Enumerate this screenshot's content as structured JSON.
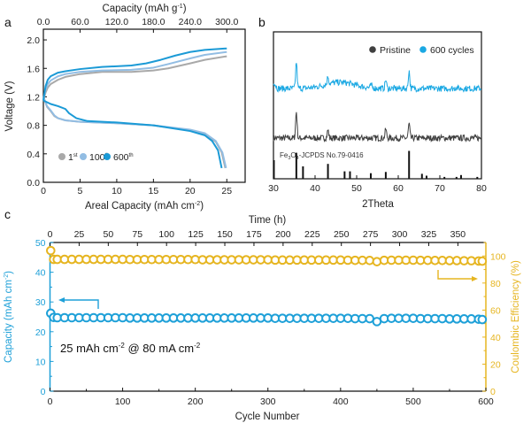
{
  "chart_data": [
    {
      "panel": "a",
      "type": "line",
      "top_title": [
        "Capacity (mAh g",
        "-1",
        ")"
      ],
      "top_ticks": [
        "0.0",
        "60.0",
        "120.0",
        "180.0",
        "240.0",
        "300.0"
      ],
      "top_tick_values": [
        0,
        60,
        120,
        180,
        240,
        300
      ],
      "xlabel": [
        "Areal Capacity (mAh cm",
        "-2",
        ")"
      ],
      "ylabel": "Voltage (V)",
      "x_ticks": [
        "0",
        "5",
        "10",
        "15",
        "20",
        "25"
      ],
      "x_tick_values": [
        0,
        5,
        10,
        15,
        20,
        25
      ],
      "y_ticks": [
        "0.0",
        "0.4",
        "0.8",
        "1.2",
        "1.6",
        "2.0"
      ],
      "y_tick_values": [
        0,
        0.4,
        0.8,
        1.2,
        1.6,
        2.0
      ],
      "xlim": [
        0,
        27.5
      ],
      "ylim": [
        0,
        2.15
      ],
      "legend_position": "bottom-left",
      "series": [
        {
          "name": "1",
          "sup": "st",
          "color": "#a9a9a9",
          "charge": [
            [
              0,
              1.15
            ],
            [
              0.3,
              1.26
            ],
            [
              0.6,
              1.33
            ],
            [
              1,
              1.38
            ],
            [
              2,
              1.44
            ],
            [
              3,
              1.48
            ],
            [
              5,
              1.52
            ],
            [
              8,
              1.55
            ],
            [
              12,
              1.55
            ],
            [
              15,
              1.57
            ],
            [
              17,
              1.6
            ],
            [
              20,
              1.67
            ],
            [
              22,
              1.72
            ],
            [
              25,
              1.77
            ]
          ],
          "discharge": [
            [
              0,
              1.2
            ],
            [
              0.5,
              1.06
            ],
            [
              1,
              1.0
            ],
            [
              1.5,
              0.93
            ],
            [
              2,
              0.9
            ],
            [
              3,
              0.87
            ],
            [
              5,
              0.85
            ],
            [
              10,
              0.83
            ],
            [
              15,
              0.8
            ],
            [
              20,
              0.73
            ],
            [
              22,
              0.68
            ],
            [
              23.5,
              0.57
            ],
            [
              24.3,
              0.42
            ],
            [
              24.8,
              0.2
            ]
          ]
        },
        {
          "name": "100",
          "sup": "th",
          "color": "#92bde3",
          "charge": [
            [
              0,
              1.15
            ],
            [
              0.3,
              1.3
            ],
            [
              0.6,
              1.38
            ],
            [
              1,
              1.43
            ],
            [
              2,
              1.49
            ],
            [
              3,
              1.52
            ],
            [
              5,
              1.55
            ],
            [
              8,
              1.57
            ],
            [
              12,
              1.58
            ],
            [
              15,
              1.61
            ],
            [
              17,
              1.66
            ],
            [
              20,
              1.74
            ],
            [
              22,
              1.79
            ],
            [
              25,
              1.83
            ]
          ],
          "discharge": [
            [
              0,
              1.2
            ],
            [
              0.5,
              1.07
            ],
            [
              1,
              1.01
            ],
            [
              1.5,
              0.94
            ],
            [
              2,
              0.9
            ],
            [
              3,
              0.87
            ],
            [
              5,
              0.85
            ],
            [
              10,
              0.83
            ],
            [
              15,
              0.8
            ],
            [
              20,
              0.74
            ],
            [
              22,
              0.69
            ],
            [
              23.5,
              0.58
            ],
            [
              24.4,
              0.42
            ],
            [
              24.9,
              0.2
            ]
          ]
        },
        {
          "name": "600",
          "sup": "th",
          "color": "#1b9ad6",
          "charge": [
            [
              0,
              1.15
            ],
            [
              0.3,
              1.35
            ],
            [
              0.6,
              1.44
            ],
            [
              1,
              1.49
            ],
            [
              2,
              1.54
            ],
            [
              3,
              1.56
            ],
            [
              5,
              1.59
            ],
            [
              8,
              1.62
            ],
            [
              12,
              1.64
            ],
            [
              14,
              1.67
            ],
            [
              16,
              1.72
            ],
            [
              18,
              1.78
            ],
            [
              20,
              1.83
            ],
            [
              22,
              1.86
            ],
            [
              25,
              1.88
            ]
          ],
          "discharge": [
            [
              0,
              1.15
            ],
            [
              1,
              1.1
            ],
            [
              2,
              1.07
            ],
            [
              3,
              1.03
            ],
            [
              3.5,
              0.97
            ],
            [
              4.5,
              0.9
            ],
            [
              6,
              0.86
            ],
            [
              10,
              0.84
            ],
            [
              15,
              0.8
            ],
            [
              20,
              0.72
            ],
            [
              22,
              0.66
            ],
            [
              23,
              0.58
            ],
            [
              23.8,
              0.45
            ],
            [
              24.3,
              0.2
            ]
          ]
        }
      ]
    },
    {
      "panel": "b",
      "type": "line",
      "xlabel": "2Theta",
      "x_ticks": [
        "30",
        "40",
        "50",
        "60",
        "70",
        "80"
      ],
      "x_tick_values": [
        30,
        40,
        50,
        60,
        70,
        80
      ],
      "xlim": [
        30,
        80
      ],
      "legend_position": "top-right",
      "series": [
        {
          "name": "Pristine",
          "color": "#3f3f3f",
          "offset": 0.55,
          "noise": 0.035,
          "peaks": [
            [
              35.5,
              0.3
            ],
            [
              43.1,
              0.09
            ],
            [
              57.0,
              0.1
            ],
            [
              62.6,
              0.16
            ]
          ],
          "hump": 0
        },
        {
          "name": "600 cycles",
          "color": "#1aa8e3",
          "offset": 1.0,
          "noise": 0.035,
          "peaks": [
            [
              35.5,
              0.3
            ],
            [
              43.1,
              0.09
            ],
            [
              53.5,
              0.03
            ],
            [
              57.0,
              0.1
            ],
            [
              62.6,
              0.2
            ],
            [
              74,
              0.02
            ]
          ],
          "hump": 0.07
        }
      ],
      "reference": {
        "label": [
          "Fe",
          "3",
          "O",
          "4",
          "-JCPDS No.79-0416"
        ],
        "sticks": [
          [
            30.1,
            0.3
          ],
          [
            35.5,
            0.42
          ],
          [
            37.1,
            0.2
          ],
          [
            43.1,
            0.24
          ],
          [
            47.1,
            0.12
          ],
          [
            48.4,
            0.12
          ],
          [
            53.4,
            0.09
          ],
          [
            57.0,
            0.11
          ],
          [
            62.6,
            0.45
          ],
          [
            65.7,
            0.08
          ],
          [
            66.8,
            0.05
          ],
          [
            71.1,
            0.03
          ],
          [
            74.0,
            0.03
          ],
          [
            75.1,
            0.06
          ],
          [
            79.0,
            0.03
          ]
        ]
      }
    },
    {
      "panel": "c",
      "type": "scatter",
      "top_title": "Time (h)",
      "top_ticks": [
        "0",
        "25",
        "50",
        "75",
        "100",
        "125",
        "150",
        "175",
        "200",
        "225",
        "250",
        "275",
        "300",
        "325",
        "350"
      ],
      "top_tick_values": [
        0,
        25,
        50,
        75,
        100,
        125,
        150,
        175,
        200,
        225,
        250,
        275,
        300,
        325,
        350
      ],
      "time_range": [
        0,
        374
      ],
      "xlabel": "Cycle Number",
      "x_ticks": [
        "0",
        "100",
        "200",
        "300",
        "400",
        "500",
        "600"
      ],
      "x_tick_values": [
        0,
        100,
        200,
        300,
        400,
        500,
        600
      ],
      "xlim": [
        0,
        600
      ],
      "ylabel_left": [
        "Capacity (mAh cm",
        "-2",
        ")"
      ],
      "y_left_ticks": [
        "0",
        "10",
        "20",
        "30",
        "40",
        "50"
      ],
      "y_left_tick_values": [
        0,
        10,
        20,
        30,
        40,
        50
      ],
      "ylim_left": [
        0,
        50
      ],
      "ylabel_right": "Coulombic Efficiency (%)",
      "y_right_ticks": [
        "0",
        "20",
        "40",
        "60",
        "80",
        "100"
      ],
      "y_right_tick_values": [
        0,
        20,
        40,
        60,
        80,
        100
      ],
      "ylim_right": [
        0,
        110
      ],
      "annotation": [
        "25 mAh cm",
        "-2",
        " @ 80 mA cm",
        "-2"
      ],
      "cycles": [
        1,
        5,
        10,
        20,
        30,
        40,
        50,
        60,
        70,
        80,
        90,
        100,
        110,
        120,
        130,
        140,
        150,
        160,
        170,
        180,
        190,
        200,
        210,
        220,
        230,
        240,
        250,
        260,
        270,
        280,
        290,
        300,
        310,
        320,
        330,
        340,
        350,
        360,
        370,
        380,
        390,
        400,
        410,
        420,
        430,
        440,
        450,
        460,
        470,
        480,
        490,
        500,
        510,
        520,
        530,
        540,
        550,
        560,
        570,
        580,
        590,
        595
      ],
      "series": [
        {
          "name": "Capacity",
          "axis": "left",
          "color": "#1ea0d8",
          "values": [
            26.2,
            24.8,
            24.7,
            24.7,
            24.7,
            24.7,
            24.7,
            24.7,
            24.7,
            24.7,
            24.7,
            24.7,
            24.6,
            24.6,
            24.6,
            24.6,
            24.6,
            24.6,
            24.6,
            24.6,
            24.6,
            24.6,
            24.6,
            24.6,
            24.6,
            24.6,
            24.6,
            24.6,
            24.6,
            24.6,
            24.6,
            24.6,
            24.5,
            24.5,
            24.5,
            24.5,
            24.5,
            24.5,
            24.5,
            24.5,
            24.5,
            24.5,
            24.5,
            24.4,
            24.4,
            24.4,
            23.4,
            24.4,
            24.5,
            24.5,
            24.5,
            24.5,
            24.4,
            24.4,
            24.4,
            24.4,
            24.3,
            24.3,
            24.3,
            24.3,
            24.2,
            24.1
          ]
        },
        {
          "name": "Coulombic Efficiency",
          "axis": "right",
          "color": "#e6b520",
          "values": [
            104,
            97.5,
            97.5,
            97.5,
            97.5,
            97.5,
            97.5,
            97.5,
            97.5,
            97.5,
            97.5,
            97.5,
            97.4,
            97.4,
            97.4,
            97.4,
            97.4,
            97.4,
            97.4,
            97.4,
            97.4,
            97.4,
            97.2,
            97.2,
            97.2,
            97.2,
            97.2,
            97.2,
            97.2,
            97.2,
            97.2,
            97.2,
            97.0,
            97.0,
            97.0,
            97.0,
            97.0,
            97.0,
            97.0,
            97.0,
            97.0,
            97.0,
            96.9,
            96.8,
            96.8,
            96.7,
            95.8,
            96.8,
            96.9,
            96.9,
            96.9,
            96.9,
            96.8,
            96.8,
            96.7,
            96.7,
            96.6,
            96.6,
            96.5,
            96.5,
            96.3,
            96.2
          ]
        }
      ]
    }
  ],
  "panel_labels": [
    "a",
    "b",
    "c"
  ]
}
